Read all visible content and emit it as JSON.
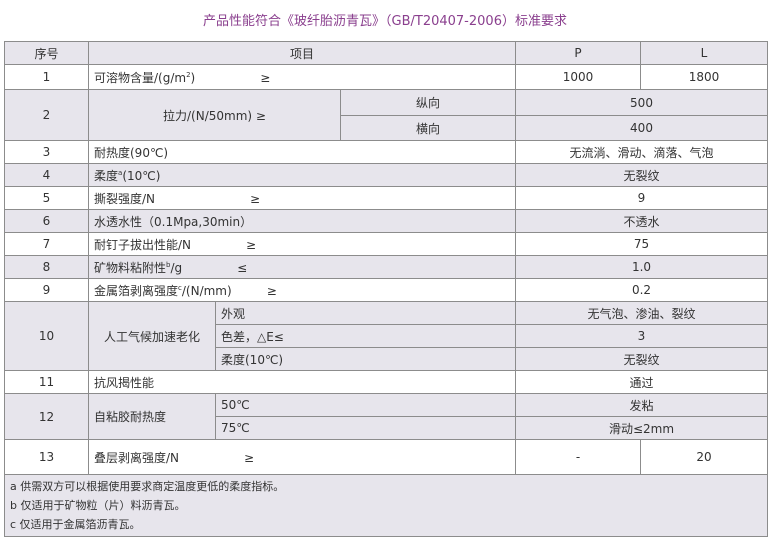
{
  "title": "产品性能符合《玻纤胎沥青瓦》（GB/T20407-2006）标准要求",
  "header": {
    "seq": "序号",
    "item": "项目",
    "p": "P",
    "l": "L"
  },
  "rows": {
    "r1": {
      "seq": "1",
      "pre": "可溶物含量/(g/m",
      "sup": "2",
      "post": ")",
      "sign": "≥",
      "p": "1000",
      "l": "1800"
    },
    "r2": {
      "seq": "2",
      "item": "拉力/(N/50mm)   ≥",
      "sub1": "纵向",
      "val1": "500",
      "sub2": "横向",
      "val2": "400"
    },
    "r3": {
      "seq": "3",
      "item": "耐热度(90℃)",
      "val": "无流淌、滑动、滴落、气泡"
    },
    "r4": {
      "seq": "4",
      "pre": "柔度",
      "sup": "a",
      "post": "(10℃)",
      "val": "无裂纹"
    },
    "r5": {
      "seq": "5",
      "item": "撕裂强度/N",
      "sign": "≥",
      "val": "9"
    },
    "r6": {
      "seq": "6",
      "item": "水透水性（0.1Mpa,30min）",
      "val": "不透水"
    },
    "r7": {
      "seq": "7",
      "item": "耐钉子拔出性能/N",
      "sign": "≥",
      "val": "75"
    },
    "r8": {
      "seq": "8",
      "pre": "矿物料粘附性",
      "sup": "b",
      "post": "/g",
      "sign": "≤",
      "val": "1.0"
    },
    "r9": {
      "seq": "9",
      "pre": "金属箔剥离强度",
      "sup": "c",
      "post": "/(N/mm)",
      "sign": "≥",
      "val": "0.2"
    },
    "r10": {
      "seq": "10",
      "item": "人工气候加速老化",
      "sub1": "外观",
      "val1": "无气泡、渗油、裂纹",
      "sub2": "色差，△E≤",
      "val2": "3",
      "sub3": "柔度(10℃)",
      "val3": "无裂纹"
    },
    "r11": {
      "seq": "11",
      "item": "抗风揭性能",
      "val": "通过"
    },
    "r12": {
      "seq": "12",
      "item": "自粘胶耐热度",
      "sub1": "50℃",
      "val1": "发粘",
      "sub2": "75℃",
      "val2": "滑动≤2mm"
    },
    "r13": {
      "seq": "13",
      "item": "叠层剥离强度/N",
      "sign": "≥",
      "p": "-",
      "l": "20"
    }
  },
  "notes": [
    "a 供需双方可以根据使用要求商定温度更低的柔度指标。",
    "b 仅适用于矿物粒（片）料沥青瓦。",
    "c 仅适用于金属箔沥青瓦。"
  ]
}
